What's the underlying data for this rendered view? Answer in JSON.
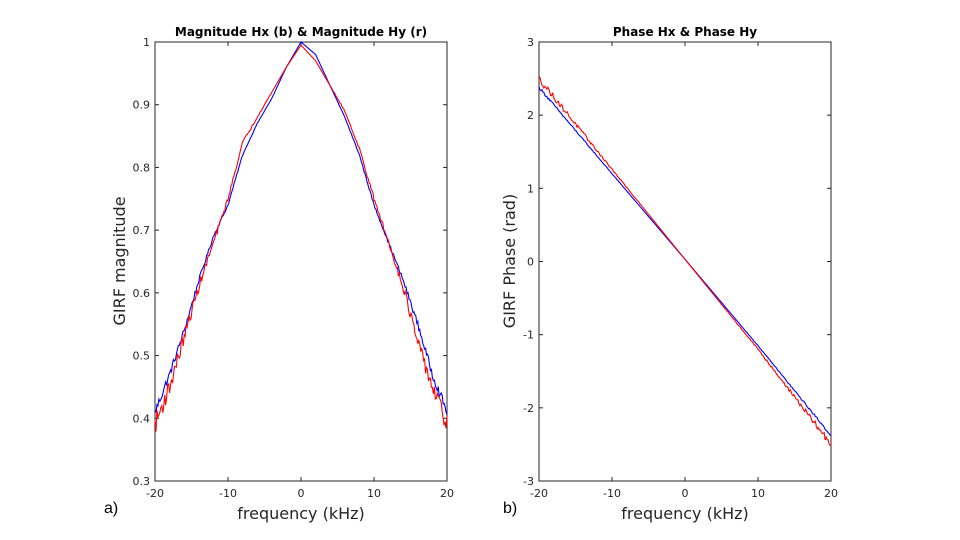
{
  "chart_data": [
    {
      "type": "line",
      "panel_label": "a)",
      "title": "Magnitude Hx (b) & Magnitude Hy (r)",
      "xlabel": "frequency (kHz)",
      "ylabel": "GIRF magnitude",
      "xlim": [
        -20,
        20
      ],
      "ylim": [
        0.3,
        1
      ],
      "xticks": [
        "-20",
        "-10",
        "0",
        "10",
        "20"
      ],
      "yticks": [
        "0.3",
        "0.4",
        "0.5",
        "0.6",
        "0.7",
        "0.8",
        "0.9",
        "1"
      ],
      "series": [
        {
          "name": "Magnitude Hx",
          "color": "#0000ff",
          "x": [
            -20,
            -18,
            -16,
            -14,
            -12,
            -10,
            -8,
            -6,
            -4,
            -2,
            0,
            2,
            4,
            6,
            8,
            10,
            12,
            14,
            16,
            18,
            20
          ],
          "y": [
            0.41,
            0.47,
            0.54,
            0.62,
            0.69,
            0.74,
            0.82,
            0.87,
            0.91,
            0.96,
            1.0,
            0.98,
            0.93,
            0.88,
            0.82,
            0.74,
            0.68,
            0.62,
            0.55,
            0.47,
            0.41
          ]
        },
        {
          "name": "Magnitude Hy",
          "color": "#ff0000",
          "x": [
            -20,
            -18,
            -16,
            -14,
            -12,
            -10,
            -8,
            -6,
            -4,
            -2,
            0,
            2,
            4,
            6,
            8,
            10,
            12,
            14,
            16,
            18,
            20
          ],
          "y": [
            0.39,
            0.45,
            0.53,
            0.61,
            0.68,
            0.75,
            0.84,
            0.88,
            0.92,
            0.96,
            0.995,
            0.97,
            0.93,
            0.89,
            0.83,
            0.75,
            0.68,
            0.61,
            0.52,
            0.45,
            0.39
          ]
        }
      ]
    },
    {
      "type": "line",
      "panel_label": "b)",
      "title": "Phase Hx & Phase Hy",
      "xlabel": "frequency (kHz)",
      "ylabel": "GIRF Phase (rad)",
      "xlim": [
        -20,
        20
      ],
      "ylim": [
        -3,
        3
      ],
      "xticks": [
        "-20",
        "-10",
        "0",
        "10",
        "20"
      ],
      "yticks": [
        "-3",
        "-2",
        "-1",
        "0",
        "1",
        "2",
        "3"
      ],
      "series": [
        {
          "name": "Phase Hx",
          "color": "#0000ff",
          "x": [
            -20,
            -10,
            0,
            10,
            20
          ],
          "y": [
            2.38,
            1.2,
            0.03,
            -1.15,
            -2.38
          ]
        },
        {
          "name": "Phase Hy",
          "color": "#ff0000",
          "x": [
            -20,
            -10,
            0,
            10,
            20
          ],
          "y": [
            2.5,
            1.26,
            0.03,
            -1.2,
            -2.5
          ]
        }
      ]
    }
  ]
}
